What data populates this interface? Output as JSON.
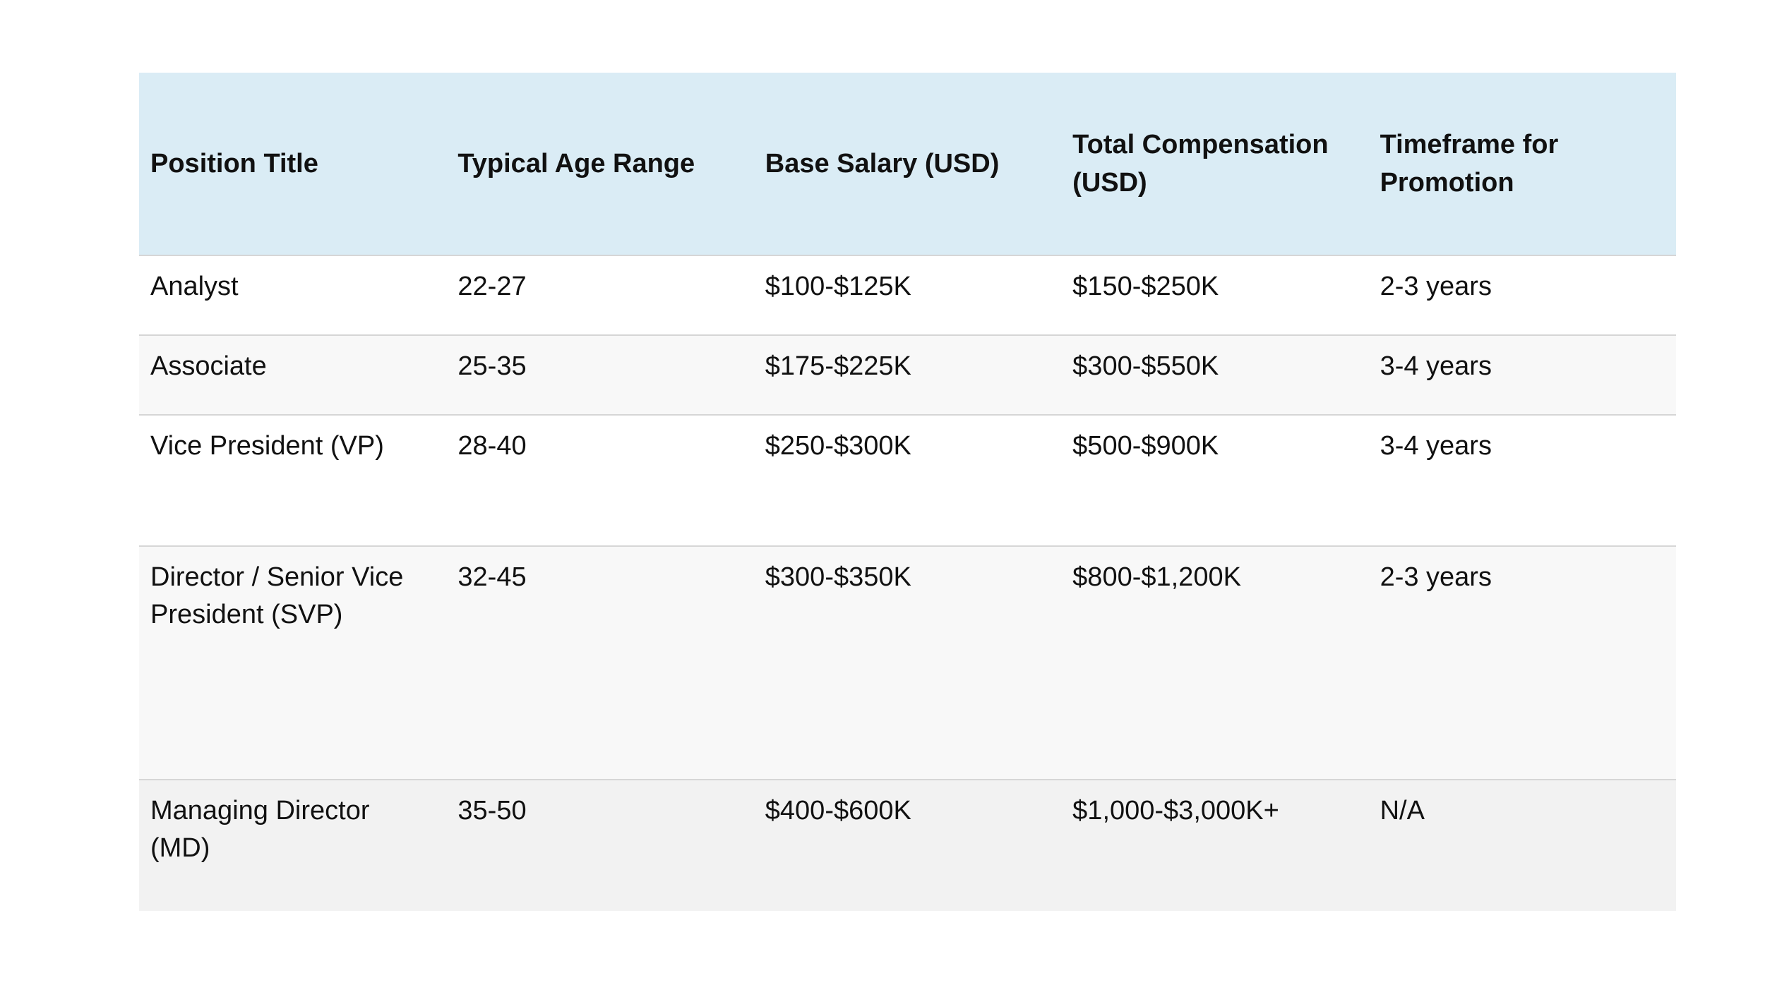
{
  "table": {
    "headers": [
      "Position Title",
      "Typical Age Range",
      "Base Salary (USD)",
      "Total Compensation (USD)",
      "Timeframe for Promotion"
    ],
    "rows": [
      [
        "Analyst",
        "22-27",
        "$100-$125K",
        "$150-$250K",
        "2-3 years"
      ],
      [
        "Associate",
        "25-35",
        "$175-$225K",
        "$300-$550K",
        "3-4 years"
      ],
      [
        "Vice President (VP)",
        "28-40",
        "$250-$300K",
        "$500-$900K",
        "3-4 years"
      ],
      [
        "Director / Senior Vice President (SVP)",
        "32-45",
        "$300-$350K",
        "$800-$1,200K",
        "2-3 years"
      ],
      [
        "Managing Director (MD)",
        "35-50",
        "$400-$600K",
        "$1,000-$3,000K+",
        "N/A"
      ]
    ],
    "colors": {
      "header_background": "#daecf5",
      "row_alt_background": "#f8f8f8",
      "last_row_background": "#f2f2f2",
      "divider": "#d6d6d6"
    }
  }
}
